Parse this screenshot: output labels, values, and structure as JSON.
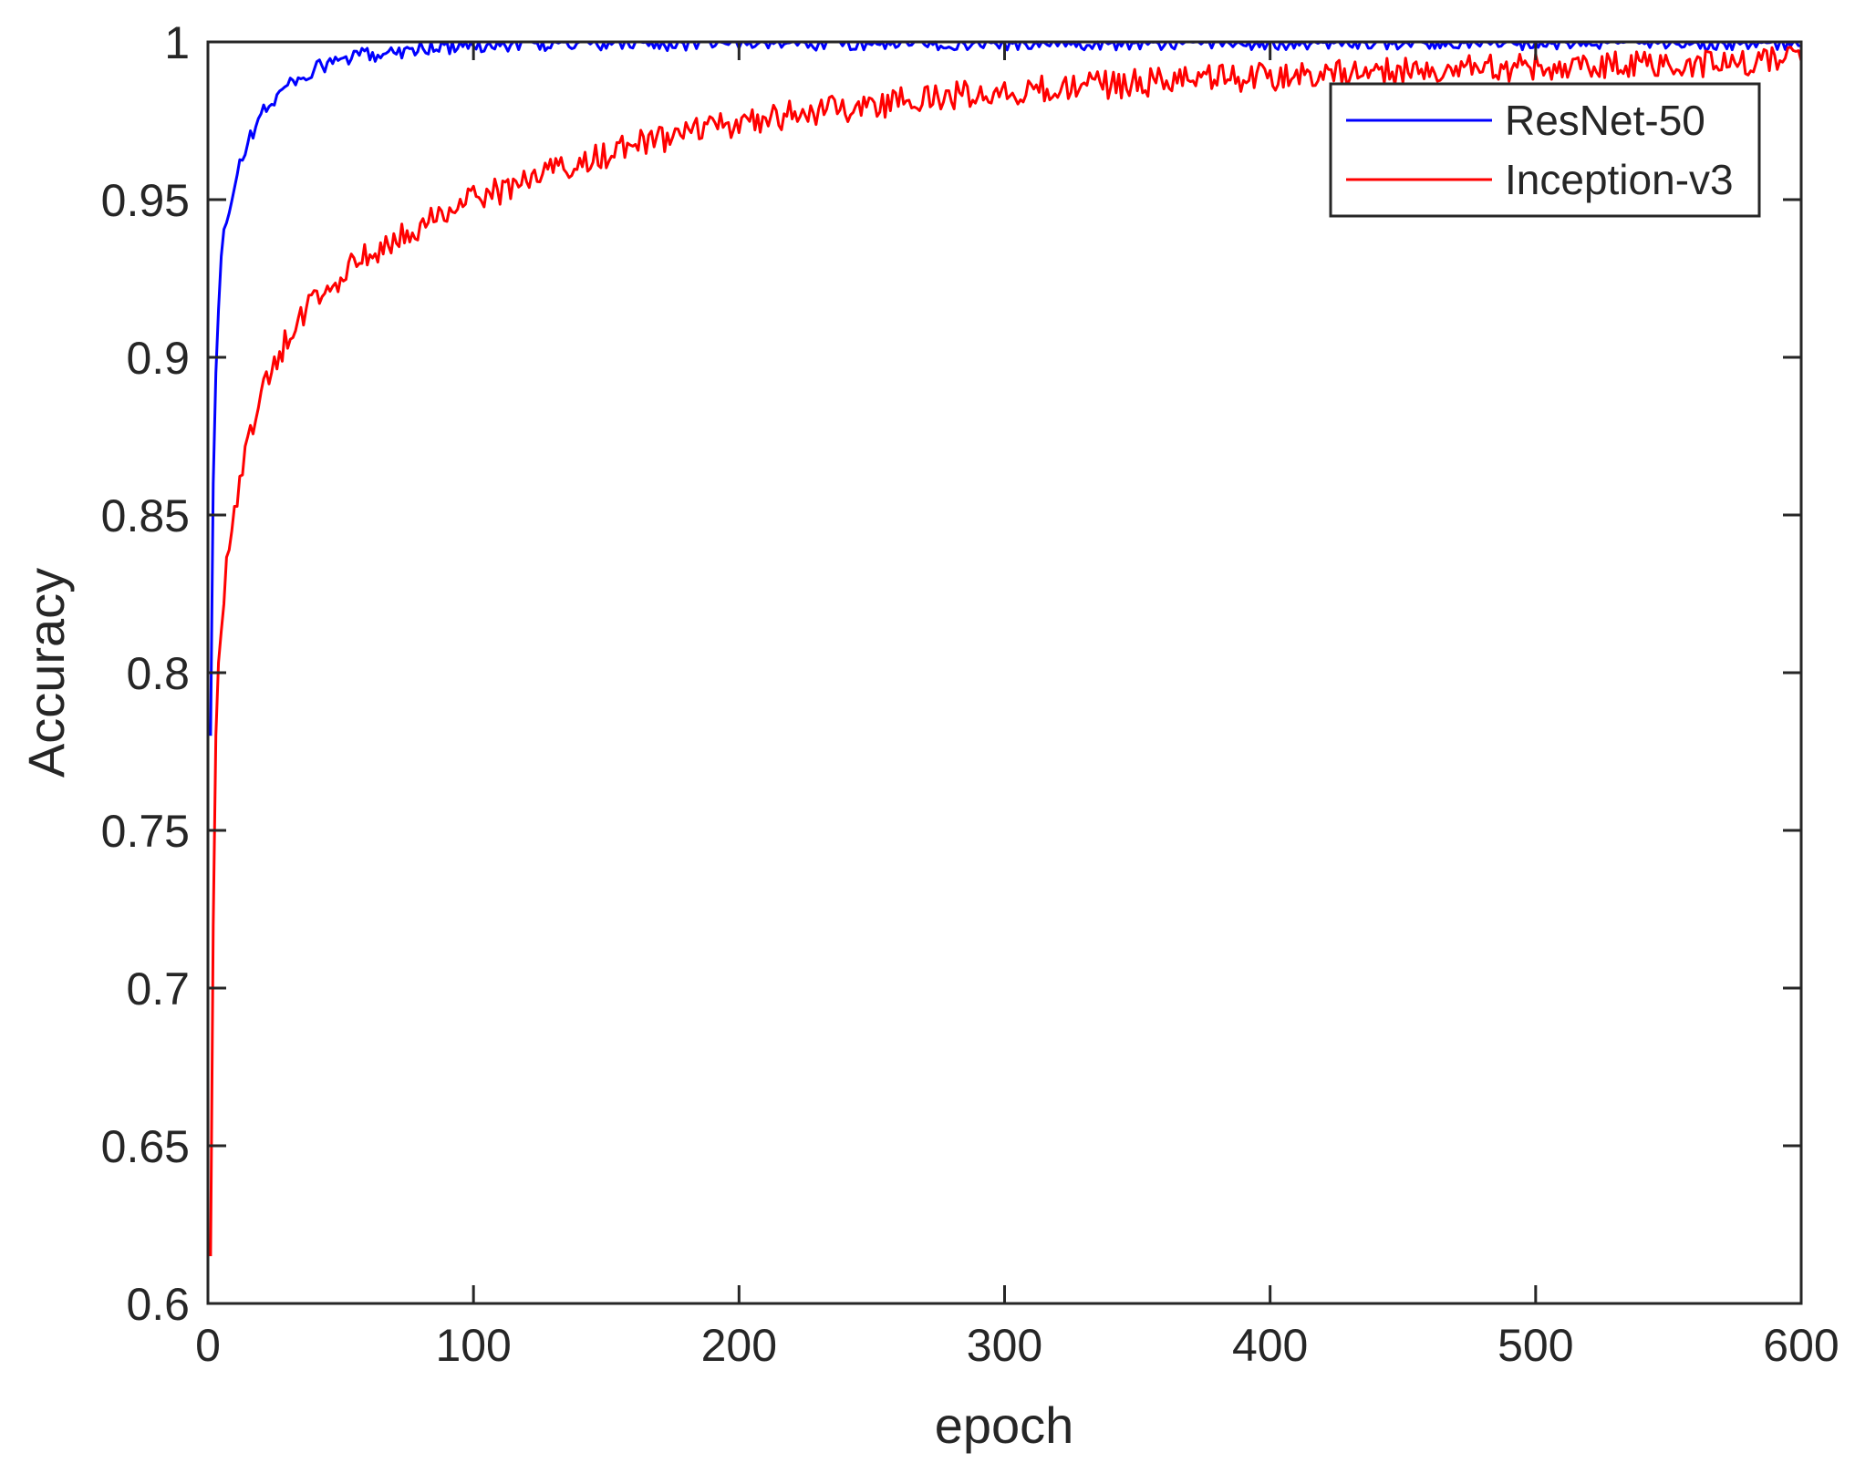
{
  "chart_data": {
    "type": "line",
    "xlabel": "epoch",
    "ylabel": "Accuracy",
    "xlim": [
      0,
      600
    ],
    "ylim": [
      0.6,
      1.0
    ],
    "xticks": [
      0,
      100,
      200,
      300,
      400,
      500,
      600
    ],
    "yticks": [
      0.6,
      0.65,
      0.7,
      0.75,
      0.8,
      0.85,
      0.9,
      0.95,
      1.0
    ],
    "xtick_labels": [
      "0",
      "100",
      "200",
      "300",
      "400",
      "500",
      "600"
    ],
    "ytick_labels": [
      "0.6",
      "0.65",
      "0.7",
      "0.75",
      "0.8",
      "0.85",
      "0.9",
      "0.95",
      "1"
    ],
    "grid": false,
    "legend_position": "top-right",
    "series": [
      {
        "name": "ResNet-50",
        "color": "#0000ff",
        "x": [
          1,
          2,
          3,
          4,
          5,
          6,
          8,
          10,
          12,
          15,
          18,
          20,
          25,
          30,
          35,
          40,
          45,
          50,
          60,
          70,
          80,
          90,
          100,
          120,
          150,
          200,
          250,
          300,
          400,
          500,
          600
        ],
        "y": [
          0.78,
          0.86,
          0.895,
          0.915,
          0.93,
          0.94,
          0.945,
          0.955,
          0.962,
          0.968,
          0.973,
          0.977,
          0.982,
          0.986,
          0.989,
          0.991,
          0.993,
          0.994,
          0.996,
          0.997,
          0.998,
          0.9985,
          0.999,
          0.9995,
          0.9997,
          0.9998,
          0.9999,
          0.9999,
          1.0,
          1.0,
          1.0
        ]
      },
      {
        "name": "Inception-v3",
        "color": "#ff0000",
        "x": [
          1,
          2,
          3,
          4,
          5,
          7,
          10,
          13,
          16,
          20,
          25,
          30,
          40,
          50,
          60,
          70,
          80,
          90,
          100,
          120,
          140,
          160,
          180,
          200,
          220,
          250,
          280,
          300,
          350,
          400,
          450,
          500,
          550,
          600
        ],
        "y": [
          0.615,
          0.72,
          0.78,
          0.8,
          0.815,
          0.835,
          0.85,
          0.865,
          0.877,
          0.887,
          0.898,
          0.906,
          0.918,
          0.926,
          0.932,
          0.938,
          0.942,
          0.946,
          0.95,
          0.956,
          0.962,
          0.967,
          0.971,
          0.974,
          0.977,
          0.98,
          0.983,
          0.984,
          0.987,
          0.989,
          0.991,
          0.992,
          0.993,
          0.994
        ]
      }
    ]
  }
}
